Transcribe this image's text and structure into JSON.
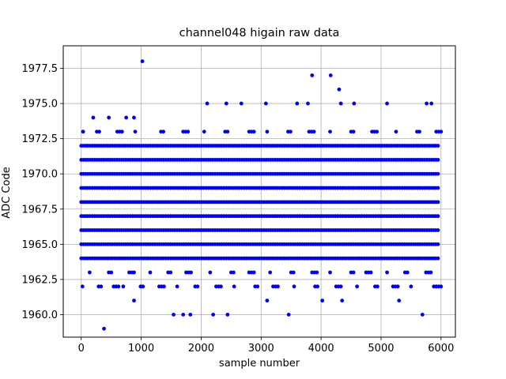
{
  "chart_data": {
    "type": "scatter",
    "title": "channel048 higain raw data",
    "xlabel": "sample number",
    "ylabel": "ADC Code",
    "xlim": [
      -300,
      6240
    ],
    "ylim": [
      1958.4,
      1979.1
    ],
    "x_ticks": [
      0,
      1000,
      2000,
      3000,
      4000,
      5000,
      6000
    ],
    "y_ticks": [
      1960.0,
      1962.5,
      1965.0,
      1967.5,
      1970.0,
      1972.5,
      1975.0,
      1977.5
    ],
    "x_tick_labels": [
      "0",
      "1000",
      "2000",
      "3000",
      "4000",
      "5000",
      "6000"
    ],
    "y_tick_labels": [
      "1960.0",
      "1962.5",
      "1965.0",
      "1967.5",
      "1970.0",
      "1972.5",
      "1975.0",
      "1977.5"
    ],
    "grid": true,
    "marker_color": "#0000ff",
    "series_dense": {
      "x_range": [
        0,
        5950
      ],
      "levels": [
        1964,
        1965,
        1966,
        1967,
        1968,
        1969,
        1970,
        1971,
        1972
      ]
    },
    "series_sparse": [
      {
        "x": 30,
        "y": 1973
      },
      {
        "x": 200,
        "y": 1974
      },
      {
        "x": 380,
        "y": 1959
      },
      {
        "x": 460,
        "y": 1974
      },
      {
        "x": 750,
        "y": 1974
      },
      {
        "x": 880,
        "y": 1974
      },
      {
        "x": 1020,
        "y": 1978
      },
      {
        "x": 2100,
        "y": 1975
      },
      {
        "x": 2420,
        "y": 1975
      },
      {
        "x": 2670,
        "y": 1975
      },
      {
        "x": 3080,
        "y": 1975
      },
      {
        "x": 3600,
        "y": 1975
      },
      {
        "x": 3780,
        "y": 1975
      },
      {
        "x": 3850,
        "y": 1977
      },
      {
        "x": 4160,
        "y": 1977
      },
      {
        "x": 4300,
        "y": 1976
      },
      {
        "x": 4330,
        "y": 1975
      },
      {
        "x": 4550,
        "y": 1975
      },
      {
        "x": 5100,
        "y": 1975
      },
      {
        "x": 5760,
        "y": 1975
      },
      {
        "x": 5840,
        "y": 1975
      },
      {
        "x": 1540,
        "y": 1960
      },
      {
        "x": 1700,
        "y": 1960
      },
      {
        "x": 1820,
        "y": 1960
      },
      {
        "x": 2200,
        "y": 1960
      },
      {
        "x": 2440,
        "y": 1960
      },
      {
        "x": 3460,
        "y": 1960
      },
      {
        "x": 5690,
        "y": 1960
      },
      {
        "x": 880,
        "y": 1961
      },
      {
        "x": 4020,
        "y": 1961
      },
      {
        "x": 4350,
        "y": 1961
      },
      {
        "x": 3100,
        "y": 1961
      },
      {
        "x": 5300,
        "y": 1961
      }
    ],
    "sparse_levels": {
      "1962": [
        20,
        290,
        540,
        700,
        990,
        1300,
        1600,
        1900,
        2250,
        2550,
        2900,
        3200,
        3550,
        3900,
        4250,
        4600,
        4900,
        5200,
        5500,
        5880,
        5920
      ],
      "1963": [
        140,
        460,
        800,
        1150,
        1450,
        1750,
        2150,
        2500,
        2800,
        3150,
        3500,
        3850,
        4150,
        4500,
        4750,
        5100,
        5400,
        5750
      ],
      "1973": [
        30,
        260,
        600,
        900,
        1330,
        1700,
        2050,
        2400,
        2800,
        3100,
        3450,
        3800,
        4150,
        4500,
        4850,
        5250,
        5600,
        5920
      ]
    }
  }
}
